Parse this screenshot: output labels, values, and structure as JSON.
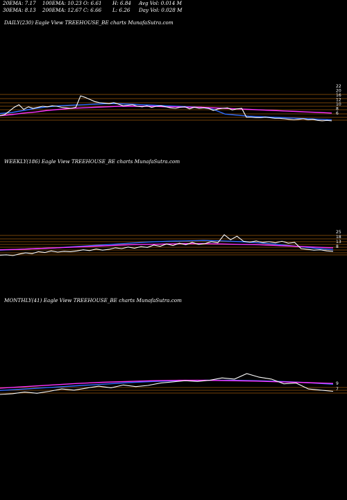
{
  "stats": {
    "ema20": "20EMA: 7.17",
    "ema30": "30EMA: 8.13",
    "ema100": "100EMA: 10.23",
    "ema200": "200EMA: 12.67",
    "open": "O: 6.61",
    "close": "C: 6.66",
    "high": "H: 6.84",
    "low": "L: 6.26",
    "avg_vol": "Avg Vol: 0.014  M",
    "day_vol": "Day Vol: 0.028  M"
  },
  "colors": {
    "background": "#000000",
    "price": "#ffffff",
    "ema_blue": "#2f6dff",
    "ema_magenta": "#ff33ff",
    "support_lines": "#b8690e"
  },
  "chart_data": [
    {
      "type": "line",
      "title": "DAILY(230) Eagle  View  TREEHOUSE_BE charts MunafaSutra.com",
      "price": [
        6.2,
        6.4,
        7.1,
        7.8,
        8.3,
        7.4,
        7.9,
        7.6,
        7.8,
        8.0,
        7.9,
        8.1,
        8.0,
        7.8,
        7.7,
        7.6,
        7.8,
        10.0,
        9.7,
        9.3,
        8.9,
        8.7,
        8.6,
        8.5,
        8.7,
        8.4,
        8.1,
        8.2,
        8.3,
        8.0,
        7.9,
        8.1,
        7.8,
        8.0,
        8.1,
        7.9,
        7.7,
        7.6,
        7.8,
        7.9,
        7.5,
        7.8,
        7.6,
        7.7,
        7.6,
        7.2,
        7.5,
        7.6,
        7.7,
        7.3,
        7.5,
        7.6,
        5.9,
        5.9,
        5.8,
        5.8,
        5.9,
        5.8,
        5.7,
        5.7,
        5.6,
        5.5,
        5.4,
        5.5,
        5.6,
        5.4,
        5.5,
        5.3,
        5.2,
        5.3,
        5.2
      ],
      "ema_lines": [
        {
          "color": "#2f6dff",
          "values": [
            6.6,
            6.8,
            7.2,
            7.6,
            7.9,
            8.1,
            8.2,
            8.3,
            8.4,
            8.5,
            8.5,
            8.4,
            8.3,
            8.2,
            8.1,
            8.0,
            7.9,
            7.8,
            7.4,
            6.5,
            6.3,
            6.1,
            6.0,
            5.9,
            5.8,
            5.7,
            5.6,
            5.5,
            5.4
          ]
        },
        {
          "color": "#ff33ff",
          "values": [
            6.2,
            6.4,
            6.7,
            6.9,
            7.2,
            7.4,
            7.6,
            7.7,
            7.8,
            7.9,
            8.0,
            8.0,
            8.0,
            8.0,
            7.9,
            7.9,
            7.8,
            7.8,
            7.7,
            7.6,
            7.5,
            7.4,
            7.3,
            7.2,
            7.1,
            7.0,
            6.9,
            6.8,
            6.7
          ]
        }
      ],
      "right_tick_labels": [
        "22",
        "20",
        "16",
        "12",
        "10",
        "8",
        "6"
      ]
    },
    {
      "type": "line",
      "title": "WEEKLY(186) Eagle  View  TREEHOUSE_BE charts MunafaSutra.com",
      "price": [
        5.5,
        5.6,
        5.4,
        5.8,
        6.1,
        5.9,
        6.4,
        6.2,
        6.6,
        6.3,
        6.5,
        6.4,
        6.6,
        6.9,
        6.7,
        7.1,
        6.8,
        7.0,
        7.4,
        7.2,
        7.6,
        7.3,
        7.7,
        7.5,
        8.1,
        7.8,
        8.4,
        8.0,
        8.6,
        8.2,
        8.8,
        8.3,
        8.5,
        9.0,
        8.7,
        10.8,
        9.5,
        10.4,
        9.1,
        8.9,
        9.2,
        8.8,
        9.0,
        8.7,
        9.1,
        8.6,
        8.8,
        7.2,
        7.0,
        6.8,
        6.9,
        6.6,
        6.5
      ],
      "ema_lines": [
        {
          "color": "#2f6dff",
          "values": [
            6.8,
            7.0,
            7.2,
            7.4,
            7.7,
            8.0,
            8.3,
            8.6,
            8.9,
            9.1,
            9.2,
            9.3,
            9.2,
            9.0,
            8.7,
            8.3,
            7.8,
            7.3,
            6.9
          ]
        },
        {
          "color": "#ff33ff",
          "values": [
            6.9,
            7.0,
            7.2,
            7.4,
            7.6,
            7.8,
            8.0,
            8.2,
            8.3,
            8.4,
            8.5,
            8.5,
            8.4,
            8.3,
            8.2,
            8.0,
            7.8,
            7.6,
            7.4
          ]
        }
      ],
      "right_tick_labels": [
        "25",
        "18",
        "13",
        "8"
      ]
    },
    {
      "type": "line",
      "title": "MONTHLY(41) Eagle  View  TREEHOUSE_BE charts MunafaSutra.com",
      "price": [
        6.0,
        6.2,
        6.6,
        6.3,
        6.8,
        7.4,
        7.1,
        7.6,
        8.1,
        7.7,
        8.4,
        8.0,
        8.3,
        8.9,
        9.2,
        9.5,
        9.3,
        9.6,
        10.2,
        9.9,
        11.3,
        10.4,
        9.9,
        8.7,
        8.9,
        7.4,
        7.1,
        6.8
      ],
      "ema_lines": [
        {
          "color": "#2f6dff",
          "values": [
            7.0,
            7.4,
            7.8,
            8.2,
            8.6,
            9.0,
            9.3,
            9.5,
            9.6,
            9.6,
            9.5,
            9.3,
            9.0,
            8.6
          ]
        },
        {
          "color": "#ff33ff",
          "values": [
            7.6,
            8.0,
            8.4,
            8.8,
            9.1,
            9.3,
            9.5,
            9.6,
            9.6,
            9.5,
            9.4,
            9.2,
            9.0,
            8.8
          ]
        }
      ],
      "right_tick_labels": [
        "9",
        "7"
      ]
    }
  ]
}
